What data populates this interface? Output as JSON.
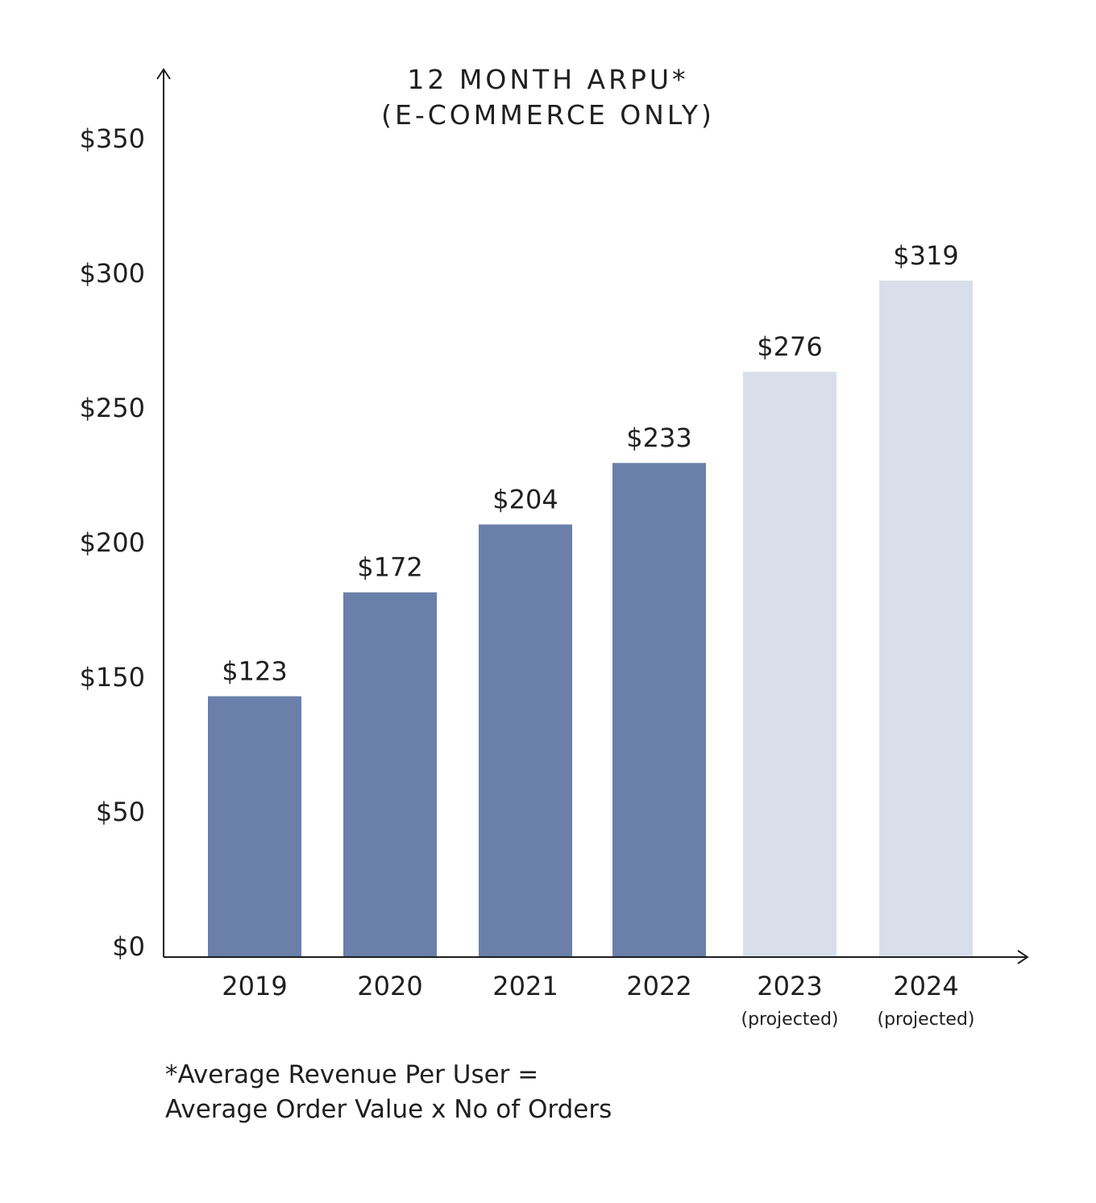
{
  "chart_data": {
    "type": "bar",
    "title": [
      "12 MONTH ARPU*",
      "(E-COMMERCE ONLY)"
    ],
    "categories": [
      "2019",
      "2020",
      "2021",
      "2022",
      "2023",
      "2024"
    ],
    "category_sublabels": [
      "",
      "",
      "",
      "",
      "(projected)",
      "(projected)"
    ],
    "values": [
      123,
      172,
      204,
      233,
      276,
      319
    ],
    "value_labels": [
      "$123",
      "$172",
      "$204",
      "$233",
      "$276",
      "$319"
    ],
    "projected": [
      false,
      false,
      false,
      false,
      true,
      true
    ],
    "y_tick_labels": [
      "$0",
      "$50",
      "$150",
      "$200",
      "$250",
      "$300",
      "$350"
    ],
    "grid": false,
    "legend": "none",
    "colors": {
      "actual": "#6a80ab",
      "projected": "#d8dfea",
      "axis": "#1f1f1f"
    }
  },
  "footnote": {
    "line1": "*Average Revenue Per User =",
    "line2": "Average Order Value x No of Orders"
  }
}
